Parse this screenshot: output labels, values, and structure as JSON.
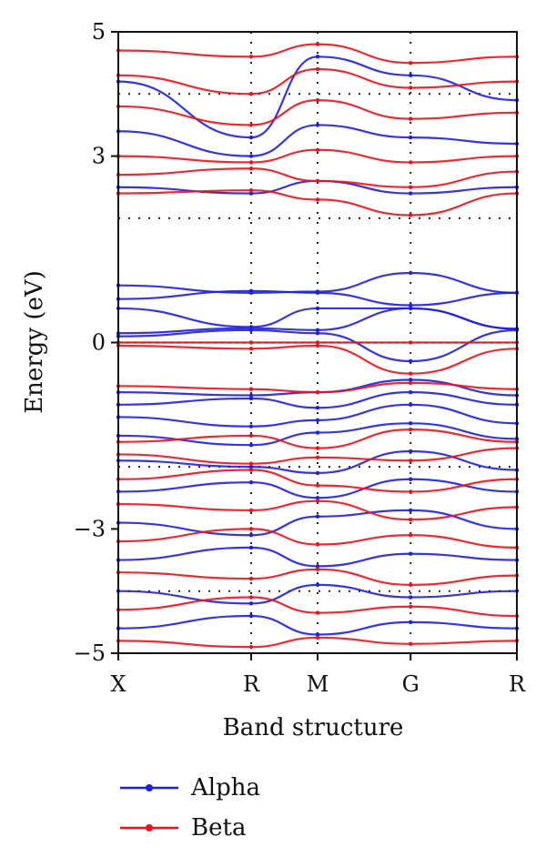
{
  "chart_data": {
    "type": "line",
    "title": "",
    "xlabel": "Band structure",
    "ylabel": "Energy (eV)",
    "ylim": [
      -5,
      5
    ],
    "yticks": [
      {
        "value": -5,
        "label": "−5"
      },
      {
        "value": -3,
        "label": "−3"
      },
      {
        "value": 0,
        "label": "0"
      },
      {
        "value": 3,
        "label": "3"
      },
      {
        "value": 5,
        "label": "5"
      }
    ],
    "xticks": [
      {
        "k": 0,
        "label": "X"
      },
      {
        "k": 1,
        "label": "R"
      },
      {
        "k": 1.5,
        "label": "M"
      },
      {
        "k": 2.2,
        "label": "G"
      },
      {
        "k": 3.0,
        "label": "R"
      }
    ],
    "xlim": [
      0,
      3.0
    ],
    "grid": "dotted",
    "grid_lines_y": [
      -4,
      -2,
      2,
      4
    ],
    "fermi_level": 0,
    "legend": {
      "placement": "bottom",
      "entries": [
        {
          "name": "Alpha",
          "color": "#1f1fe0"
        },
        {
          "name": "Beta",
          "color": "#e8141c"
        }
      ]
    },
    "series": [
      {
        "name": "Alpha",
        "color": "#1f1fe0",
        "bands": [
          {
            "k": [
              0,
              1,
              1.5,
              2.2,
              3.0
            ],
            "e": [
              0.92,
              0.8,
              0.82,
              1.12,
              0.8
            ]
          },
          {
            "k": [
              0,
              1,
              1.5,
              2.2,
              3.0
            ],
            "e": [
              0.7,
              0.83,
              0.8,
              0.6,
              0.8
            ]
          },
          {
            "k": [
              0,
              1,
              1.5,
              2.2,
              3.0
            ],
            "e": [
              0.55,
              0.25,
              0.55,
              0.55,
              0.22
            ]
          },
          {
            "k": [
              0,
              1,
              1.5,
              2.2,
              3.0
            ],
            "e": [
              0.15,
              0.23,
              0.2,
              0.55,
              0.22
            ]
          },
          {
            "k": [
              0,
              1,
              1.5,
              2.2,
              3.0
            ],
            "e": [
              0.1,
              0.2,
              0.15,
              -0.3,
              0.2
            ]
          },
          {
            "k": [
              0,
              1,
              1.5,
              2.2,
              3.0
            ],
            "e": [
              -0.8,
              -0.85,
              -0.8,
              -0.6,
              -0.85
            ]
          },
          {
            "k": [
              0,
              1,
              1.5,
              2.2,
              3.0
            ],
            "e": [
              -1.0,
              -0.9,
              -1.05,
              -0.8,
              -1.0
            ]
          },
          {
            "k": [
              0,
              1,
              1.5,
              2.2,
              3.0
            ],
            "e": [
              -1.2,
              -1.35,
              -1.25,
              -1.0,
              -1.3
            ]
          },
          {
            "k": [
              0,
              1,
              1.5,
              2.2,
              3.0
            ],
            "e": [
              -1.5,
              -1.65,
              -1.45,
              -1.3,
              -1.55
            ]
          },
          {
            "k": [
              0,
              1,
              1.5,
              2.2,
              3.0
            ],
            "e": [
              -1.9,
              -2.0,
              -2.1,
              -1.75,
              -2.05
            ]
          },
          {
            "k": [
              0,
              1,
              1.5,
              2.2,
              3.0
            ],
            "e": [
              -2.4,
              -2.25,
              -2.5,
              -2.2,
              -2.4
            ]
          },
          {
            "k": [
              0,
              1,
              1.5,
              2.2,
              3.0
            ],
            "e": [
              -2.9,
              -3.1,
              -2.8,
              -2.7,
              -3.0
            ]
          },
          {
            "k": [
              0,
              1,
              1.5,
              2.2,
              3.0
            ],
            "e": [
              -3.5,
              -3.3,
              -3.6,
              -3.4,
              -3.5
            ]
          },
          {
            "k": [
              0,
              1,
              1.5,
              2.2,
              3.0
            ],
            "e": [
              -4.0,
              -4.2,
              -3.9,
              -4.1,
              -4.0
            ]
          },
          {
            "k": [
              0,
              1,
              1.5,
              2.2,
              3.0
            ],
            "e": [
              -4.6,
              -4.4,
              -4.7,
              -4.5,
              -4.6
            ]
          },
          {
            "k": [
              0,
              1,
              1.5,
              2.2,
              3.0
            ],
            "e": [
              2.5,
              2.4,
              2.6,
              2.4,
              2.5
            ]
          },
          {
            "k": [
              0,
              1,
              1.5,
              2.2,
              3.0
            ],
            "e": [
              3.4,
              3.0,
              3.5,
              3.3,
              3.2
            ]
          },
          {
            "k": [
              0,
              1,
              1.5,
              2.2,
              3.0
            ],
            "e": [
              4.2,
              3.3,
              4.6,
              4.3,
              3.9
            ]
          }
        ]
      },
      {
        "name": "Beta",
        "color": "#e8141c",
        "bands": [
          {
            "k": [
              0,
              1,
              1.5,
              2.2,
              3.0
            ],
            "e": [
              0.0,
              0.0,
              0.0,
              0.0,
              0.0
            ]
          },
          {
            "k": [
              0,
              1,
              1.5,
              2.2,
              3.0
            ],
            "e": [
              -0.05,
              -0.1,
              -0.05,
              -0.5,
              -0.1
            ]
          },
          {
            "k": [
              0,
              1,
              1.5,
              2.2,
              3.0
            ],
            "e": [
              -0.7,
              -0.75,
              -0.8,
              -0.65,
              -0.75
            ]
          },
          {
            "k": [
              0,
              1,
              1.5,
              2.2,
              3.0
            ],
            "e": [
              -1.6,
              -1.5,
              -1.7,
              -1.4,
              -1.6
            ]
          },
          {
            "k": [
              0,
              1,
              1.5,
              2.2,
              3.0
            ],
            "e": [
              -1.8,
              -1.95,
              -1.85,
              -1.9,
              -1.7
            ]
          },
          {
            "k": [
              0,
              1,
              1.5,
              2.2,
              3.0
            ],
            "e": [
              -2.2,
              -2.05,
              -2.3,
              -2.4,
              -2.2
            ]
          },
          {
            "k": [
              0,
              1,
              1.5,
              2.2,
              3.0
            ],
            "e": [
              -2.6,
              -2.7,
              -2.55,
              -2.85,
              -2.65
            ]
          },
          {
            "k": [
              0,
              1,
              1.5,
              2.2,
              3.0
            ],
            "e": [
              -3.2,
              -3.0,
              -3.25,
              -3.1,
              -3.3
            ]
          },
          {
            "k": [
              0,
              1,
              1.5,
              2.2,
              3.0
            ],
            "e": [
              -3.7,
              -3.8,
              -3.65,
              -3.9,
              -3.75
            ]
          },
          {
            "k": [
              0,
              1,
              1.5,
              2.2,
              3.0
            ],
            "e": [
              -4.3,
              -4.1,
              -4.35,
              -4.25,
              -4.4
            ]
          },
          {
            "k": [
              0,
              1,
              1.5,
              2.2,
              3.0
            ],
            "e": [
              -4.8,
              -4.9,
              -4.75,
              -4.85,
              -4.8
            ]
          },
          {
            "k": [
              0,
              1,
              1.5,
              2.2,
              3.0
            ],
            "e": [
              2.4,
              2.45,
              2.3,
              2.05,
              2.4
            ]
          },
          {
            "k": [
              0,
              1,
              1.5,
              2.2,
              3.0
            ],
            "e": [
              2.7,
              2.8,
              2.6,
              2.5,
              2.75
            ]
          },
          {
            "k": [
              0,
              1,
              1.5,
              2.2,
              3.0
            ],
            "e": [
              3.0,
              2.9,
              3.1,
              2.9,
              3.0
            ]
          },
          {
            "k": [
              0,
              1,
              1.5,
              2.2,
              3.0
            ],
            "e": [
              3.8,
              3.5,
              3.9,
              3.6,
              3.7
            ]
          },
          {
            "k": [
              0,
              1,
              1.5,
              2.2,
              3.0
            ],
            "e": [
              4.3,
              4.0,
              4.4,
              4.1,
              4.2
            ]
          },
          {
            "k": [
              0,
              1,
              1.5,
              2.2,
              3.0
            ],
            "e": [
              4.7,
              4.6,
              4.8,
              4.5,
              4.6
            ]
          }
        ]
      }
    ]
  }
}
